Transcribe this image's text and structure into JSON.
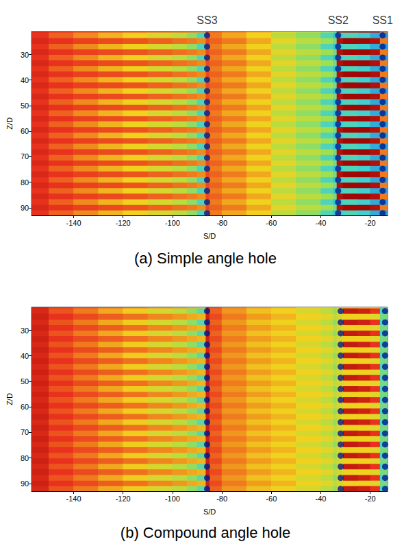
{
  "chart_data": [
    {
      "type": "heatmap",
      "title": "(a) Simple angle hole",
      "x_label": "S/D",
      "y_label": "Z/D",
      "xlim": [
        -157,
        -13
      ],
      "xticks": [
        -140,
        -120,
        -100,
        -80,
        -60,
        -40,
        -20
      ],
      "ylim": [
        93,
        21
      ],
      "yticks": [
        30,
        40,
        50,
        60,
        70,
        80,
        90
      ],
      "zlim": [
        0,
        1
      ],
      "holes": [
        {
          "label": "SS3",
          "x": -86
        },
        {
          "label": "SS2",
          "x": -33
        },
        {
          "label": "SS1",
          "x": -15
        }
      ],
      "streak_rows": [
        22.5,
        26.9,
        31.2,
        35.6,
        39.9,
        44.3,
        48.6,
        53.0,
        57.3,
        61.7,
        66.0,
        70.4,
        74.7,
        79.1,
        83.4,
        87.8,
        92.1
      ],
      "streak_width": 2.0,
      "x_edges": [
        -157,
        -150,
        -140,
        -130,
        -120,
        -110,
        -100,
        -94,
        -90,
        -86.5,
        -85,
        -80,
        -70,
        -60,
        -50,
        -40,
        -35,
        -33.5,
        -31,
        -25,
        -20,
        -16,
        -13
      ],
      "streak_values": [
        0.15,
        0.25,
        0.33,
        0.4,
        0.45,
        0.5,
        0.55,
        0.62,
        0.7,
        0.3,
        0.3,
        0.38,
        0.45,
        0.55,
        0.62,
        0.7,
        0.75,
        0.72,
        0.7,
        0.72,
        0.78,
        0.8
      ],
      "gap_values": [
        0.12,
        0.15,
        0.18,
        0.2,
        0.22,
        0.25,
        0.28,
        0.3,
        0.33,
        0.2,
        0.25,
        0.3,
        0.38,
        0.48,
        0.55,
        0.6,
        0.65,
        0.05,
        0.02,
        0.02,
        0.05,
        0.3
      ]
    },
    {
      "type": "heatmap",
      "title": "(b) Compound angle hole",
      "x_label": "S/D",
      "y_label": "Z/D",
      "xlim": [
        -157,
        -13
      ],
      "xticks": [
        -140,
        -120,
        -100,
        -80,
        -60,
        -40,
        -20
      ],
      "ylim": [
        93,
        21
      ],
      "yticks": [
        30,
        40,
        50,
        60,
        70,
        80,
        90
      ],
      "zlim": [
        0,
        1
      ],
      "holes": [
        {
          "x": -86
        },
        {
          "x": -32
        },
        {
          "x": -14
        }
      ],
      "streak_rows": [
        22.5,
        26.9,
        31.2,
        35.6,
        39.9,
        44.3,
        48.6,
        53.0,
        57.3,
        61.7,
        66.0,
        70.4,
        74.7,
        79.1,
        83.4,
        87.8,
        92.1
      ],
      "streak_width": 2.0,
      "x_edges": [
        -157,
        -150,
        -140,
        -130,
        -120,
        -110,
        -100,
        -94,
        -90,
        -86.5,
        -85,
        -80,
        -70,
        -60,
        -50,
        -40,
        -35,
        -33.5,
        -31,
        -25,
        -20,
        -16,
        -13
      ],
      "streak_values": [
        0.12,
        0.22,
        0.3,
        0.38,
        0.44,
        0.5,
        0.55,
        0.62,
        0.68,
        0.1,
        0.25,
        0.35,
        0.42,
        0.45,
        0.5,
        0.55,
        0.62,
        0.45,
        0.08,
        0.1,
        0.15,
        0.7
      ],
      "gap_values": [
        0.1,
        0.15,
        0.2,
        0.24,
        0.28,
        0.32,
        0.35,
        0.38,
        0.4,
        0.1,
        0.2,
        0.3,
        0.36,
        0.4,
        0.45,
        0.48,
        0.55,
        0.5,
        0.45,
        0.45,
        0.48,
        0.65
      ]
    }
  ]
}
